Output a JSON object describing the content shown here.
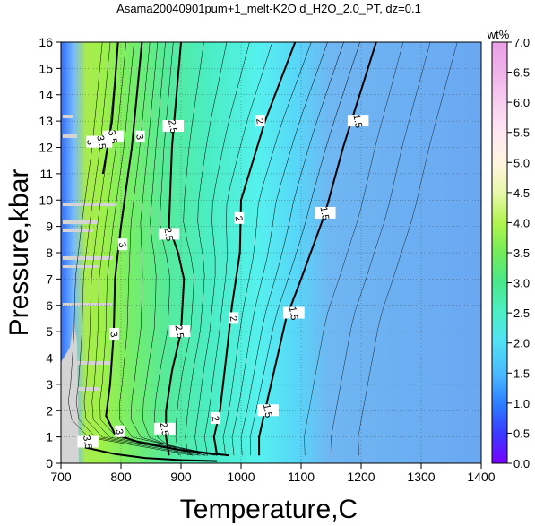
{
  "chart_data": {
    "type": "contour",
    "title": "Asama20040901pum+1_melt-K2O.d_H2O_2.0_PT, dz=0.1",
    "xlabel": "Temperature,C",
    "ylabel": "Pressure,kbar",
    "xlim": [
      700,
      1400
    ],
    "ylim": [
      0,
      16
    ],
    "x_ticks": [
      "700",
      "800",
      "900",
      "1000",
      "1100",
      "1200",
      "1300",
      "1400"
    ],
    "y_ticks": [
      "0",
      "1",
      "2",
      "3",
      "4",
      "5",
      "6",
      "7",
      "8",
      "9",
      "10",
      "11",
      "12",
      "13",
      "14",
      "15",
      "16"
    ],
    "grid": true,
    "colorbar": {
      "unit": "wt%",
      "range": [
        0.0,
        7.0
      ],
      "ticks": [
        "0.0",
        "0.5",
        "1.0",
        "1.5",
        "2.0",
        "2.5",
        "3.0",
        "3.5",
        "4.0",
        "4.5",
        "5.0",
        "5.5",
        "6.0",
        "6.5",
        "7.0"
      ]
    },
    "major_contours": [
      {
        "level": "1.5",
        "points": [
          [
            1225,
            16
          ],
          [
            1170,
            12
          ],
          [
            1140,
            9.5
          ],
          [
            1100,
            7
          ],
          [
            1075,
            5.5
          ],
          [
            1060,
            4
          ],
          [
            1045,
            2.5
          ],
          [
            1030,
            1
          ],
          [
            1030,
            0.3
          ]
        ]
      },
      {
        "level": "2",
        "points": [
          [
            1090,
            16
          ],
          [
            1040,
            13
          ],
          [
            1000,
            10
          ],
          [
            998,
            8
          ],
          [
            985,
            6
          ],
          [
            975,
            4
          ],
          [
            965,
            2
          ],
          [
            955,
            1
          ],
          [
            960,
            0.3
          ]
        ]
      },
      {
        "level": "2.5",
        "points": [
          [
            900,
            16
          ],
          [
            885,
            12
          ],
          [
            880,
            9
          ],
          [
            895,
            8
          ],
          [
            905,
            7
          ],
          [
            900,
            5
          ],
          [
            885,
            3.5
          ],
          [
            875,
            2
          ],
          [
            875,
            1
          ],
          [
            880,
            0.3
          ]
        ]
      },
      {
        "level": "3",
        "points": [
          [
            835,
            16
          ],
          [
            818,
            12
          ],
          [
            800,
            9
          ],
          [
            790,
            7
          ],
          [
            788,
            5
          ],
          [
            782,
            3
          ],
          [
            775,
            1.8
          ],
          [
            790,
            1.1
          ],
          [
            830,
            0.8
          ],
          [
            900,
            0.5
          ],
          [
            980,
            0.3
          ]
        ]
      },
      {
        "level": "3.5",
        "points": [
          [
            795,
            16
          ],
          [
            785,
            13
          ],
          [
            770,
            11
          ]
        ]
      },
      {
        "level": "3.5",
        "points": [
          [
            740,
            0.6
          ],
          [
            790,
            0.35
          ],
          [
            840,
            0.2
          ],
          [
            900,
            0.12
          ],
          [
            960,
            0.08
          ]
        ]
      }
    ],
    "contour_labels": [
      {
        "text": "1.5",
        "x": 1195,
        "y": 13
      },
      {
        "text": "1.5",
        "x": 1140,
        "y": 9.5
      },
      {
        "text": "1.5",
        "x": 1088,
        "y": 5.7
      },
      {
        "text": "1.5",
        "x": 1045,
        "y": 2
      },
      {
        "text": "2",
        "x": 1032,
        "y": 13
      },
      {
        "text": "2",
        "x": 997,
        "y": 9.3
      },
      {
        "text": "2",
        "x": 988,
        "y": 5.5
      },
      {
        "text": "2",
        "x": 958,
        "y": 1.7
      },
      {
        "text": "2.5",
        "x": 887,
        "y": 12.8
      },
      {
        "text": "2.5",
        "x": 880,
        "y": 8.7
      },
      {
        "text": "2.5",
        "x": 898,
        "y": 5
      },
      {
        "text": "2.5",
        "x": 873,
        "y": 1.3
      },
      {
        "text": "3",
        "x": 832,
        "y": 12.4
      },
      {
        "text": "3",
        "x": 803,
        "y": 8.3
      },
      {
        "text": "3",
        "x": 789,
        "y": 4.9
      },
      {
        "text": "3",
        "x": 798,
        "y": 1.2
      },
      {
        "text": "3.5",
        "x": 787,
        "y": 12.4
      },
      {
        "text": "3",
        "x": 750,
        "y": 12.2
      },
      {
        "text": "3.5",
        "x": 768,
        "y": 12.2
      },
      {
        "text": "3.5",
        "x": 745,
        "y": 0.8
      }
    ]
  }
}
